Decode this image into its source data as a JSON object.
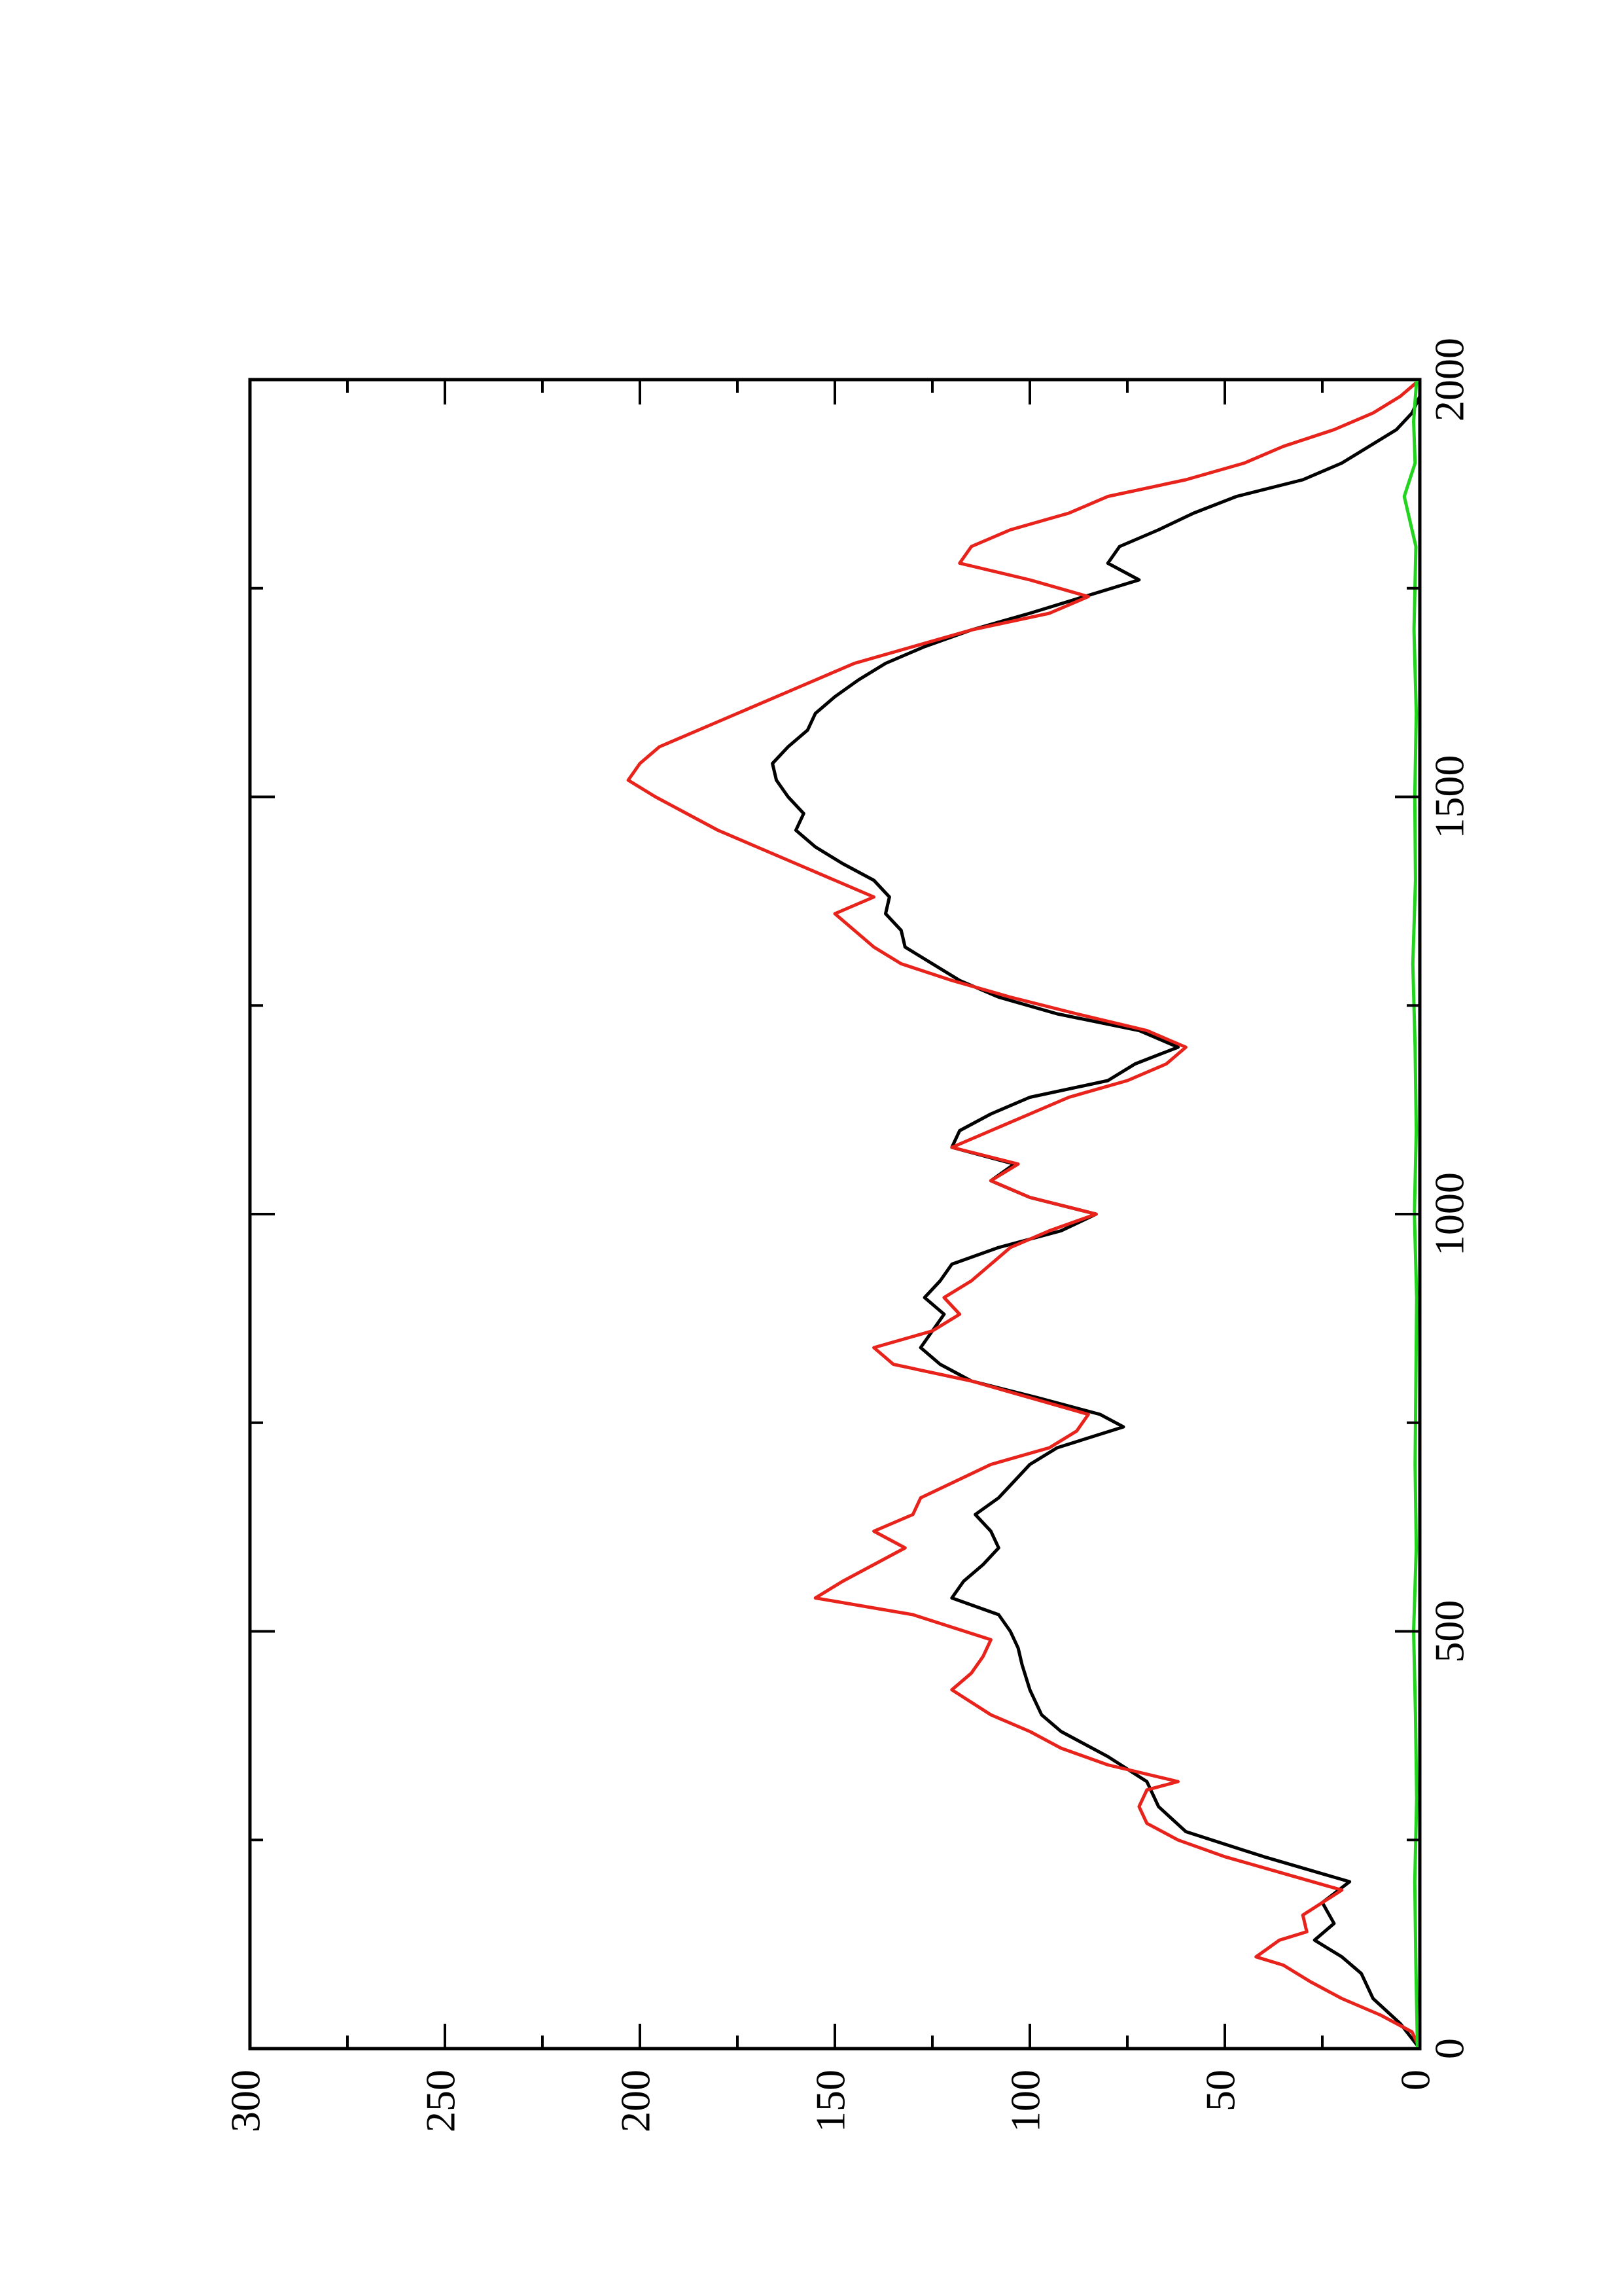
{
  "chart_data": {
    "type": "line",
    "title": "",
    "xlabel": "",
    "ylabel": "",
    "xlim": [
      0,
      2000
    ],
    "ylim": [
      0,
      300
    ],
    "x_ticks": [
      0,
      500,
      1000,
      1500,
      2000
    ],
    "y_ticks": [
      0,
      50,
      100,
      150,
      200,
      250,
      300
    ],
    "x_tick_labels": [
      "0",
      "500",
      "1000",
      "1500",
      "2000"
    ],
    "y_tick_labels": [
      "0",
      "50",
      "100",
      "150",
      "200",
      "250",
      "300"
    ],
    "grid": false,
    "legend": "none",
    "orientation": "rotated 90 degrees counter-clockwise",
    "series": [
      {
        "color": "#000000",
        "points": [
          [
            0,
            0
          ],
          [
            30,
            5
          ],
          [
            60,
            12
          ],
          [
            90,
            15
          ],
          [
            110,
            20
          ],
          [
            130,
            27
          ],
          [
            150,
            22
          ],
          [
            175,
            25
          ],
          [
            200,
            18
          ],
          [
            230,
            40
          ],
          [
            260,
            60
          ],
          [
            290,
            67
          ],
          [
            320,
            70
          ],
          [
            350,
            80
          ],
          [
            380,
            92
          ],
          [
            400,
            97
          ],
          [
            430,
            100
          ],
          [
            460,
            102
          ],
          [
            480,
            103
          ],
          [
            500,
            105
          ],
          [
            520,
            108
          ],
          [
            540,
            120
          ],
          [
            560,
            117
          ],
          [
            580,
            112
          ],
          [
            600,
            108
          ],
          [
            620,
            110
          ],
          [
            640,
            114
          ],
          [
            660,
            108
          ],
          [
            680,
            104
          ],
          [
            700,
            100
          ],
          [
            720,
            93
          ],
          [
            745,
            76
          ],
          [
            760,
            82
          ],
          [
            780,
            98
          ],
          [
            800,
            115
          ],
          [
            820,
            123
          ],
          [
            840,
            128
          ],
          [
            860,
            125
          ],
          [
            880,
            122
          ],
          [
            900,
            127
          ],
          [
            920,
            123
          ],
          [
            940,
            120
          ],
          [
            960,
            108
          ],
          [
            980,
            92
          ],
          [
            1000,
            83
          ],
          [
            1020,
            100
          ],
          [
            1040,
            110
          ],
          [
            1060,
            104
          ],
          [
            1080,
            120
          ],
          [
            1100,
            118
          ],
          [
            1120,
            110
          ],
          [
            1140,
            100
          ],
          [
            1160,
            80
          ],
          [
            1180,
            73
          ],
          [
            1200,
            62
          ],
          [
            1220,
            72
          ],
          [
            1240,
            93
          ],
          [
            1260,
            108
          ],
          [
            1280,
            118
          ],
          [
            1300,
            125
          ],
          [
            1320,
            132
          ],
          [
            1340,
            133
          ],
          [
            1360,
            137
          ],
          [
            1380,
            136
          ],
          [
            1400,
            140
          ],
          [
            1420,
            148
          ],
          [
            1440,
            155
          ],
          [
            1460,
            160
          ],
          [
            1480,
            158
          ],
          [
            1500,
            162
          ],
          [
            1520,
            165
          ],
          [
            1540,
            166
          ],
          [
            1560,
            162
          ],
          [
            1580,
            157
          ],
          [
            1600,
            155
          ],
          [
            1620,
            150
          ],
          [
            1640,
            144
          ],
          [
            1660,
            137
          ],
          [
            1680,
            127
          ],
          [
            1700,
            115
          ],
          [
            1720,
            100
          ],
          [
            1740,
            86
          ],
          [
            1760,
            72
          ],
          [
            1780,
            80
          ],
          [
            1800,
            77
          ],
          [
            1820,
            67
          ],
          [
            1840,
            58
          ],
          [
            1860,
            47
          ],
          [
            1880,
            30
          ],
          [
            1900,
            20
          ],
          [
            1920,
            13
          ],
          [
            1940,
            6
          ],
          [
            1960,
            2
          ],
          [
            1980,
            0
          ],
          [
            2000,
            0
          ]
        ]
      },
      {
        "color": "#e8231b",
        "points": [
          [
            0,
            0
          ],
          [
            20,
            2
          ],
          [
            40,
            10
          ],
          [
            60,
            20
          ],
          [
            80,
            28
          ],
          [
            100,
            35
          ],
          [
            110,
            42
          ],
          [
            130,
            36
          ],
          [
            140,
            29
          ],
          [
            160,
            30
          ],
          [
            175,
            25
          ],
          [
            190,
            20
          ],
          [
            210,
            35
          ],
          [
            230,
            50
          ],
          [
            250,
            62
          ],
          [
            270,
            70
          ],
          [
            290,
            72
          ],
          [
            310,
            70
          ],
          [
            320,
            62
          ],
          [
            340,
            80
          ],
          [
            360,
            92
          ],
          [
            380,
            100
          ],
          [
            400,
            110
          ],
          [
            430,
            120
          ],
          [
            450,
            115
          ],
          [
            470,
            112
          ],
          [
            490,
            110
          ],
          [
            520,
            130
          ],
          [
            540,
            155
          ],
          [
            560,
            148
          ],
          [
            580,
            140
          ],
          [
            600,
            132
          ],
          [
            620,
            140
          ],
          [
            640,
            130
          ],
          [
            660,
            128
          ],
          [
            700,
            110
          ],
          [
            720,
            95
          ],
          [
            740,
            88
          ],
          [
            760,
            85
          ],
          [
            780,
            100
          ],
          [
            800,
            115
          ],
          [
            820,
            135
          ],
          [
            840,
            140
          ],
          [
            860,
            125
          ],
          [
            880,
            118
          ],
          [
            900,
            122
          ],
          [
            920,
            115
          ],
          [
            940,
            110
          ],
          [
            960,
            105
          ],
          [
            980,
            95
          ],
          [
            1000,
            83
          ],
          [
            1020,
            100
          ],
          [
            1040,
            110
          ],
          [
            1060,
            103
          ],
          [
            1080,
            120
          ],
          [
            1100,
            110
          ],
          [
            1120,
            100
          ],
          [
            1140,
            90
          ],
          [
            1160,
            75
          ],
          [
            1180,
            65
          ],
          [
            1200,
            60
          ],
          [
            1220,
            70
          ],
          [
            1240,
            88
          ],
          [
            1260,
            105
          ],
          [
            1280,
            120
          ],
          [
            1300,
            133
          ],
          [
            1320,
            140
          ],
          [
            1340,
            145
          ],
          [
            1360,
            150
          ],
          [
            1380,
            140
          ],
          [
            1400,
            150
          ],
          [
            1420,
            160
          ],
          [
            1440,
            170
          ],
          [
            1460,
            180
          ],
          [
            1480,
            188
          ],
          [
            1500,
            196
          ],
          [
            1520,
            203
          ],
          [
            1540,
            200
          ],
          [
            1560,
            195
          ],
          [
            1580,
            185
          ],
          [
            1600,
            175
          ],
          [
            1620,
            165
          ],
          [
            1640,
            155
          ],
          [
            1660,
            145
          ],
          [
            1680,
            130
          ],
          [
            1700,
            115
          ],
          [
            1720,
            95
          ],
          [
            1740,
            85
          ],
          [
            1760,
            100
          ],
          [
            1780,
            118
          ],
          [
            1800,
            115
          ],
          [
            1820,
            105
          ],
          [
            1840,
            90
          ],
          [
            1860,
            80
          ],
          [
            1880,
            60
          ],
          [
            1900,
            45
          ],
          [
            1920,
            35
          ],
          [
            1940,
            22
          ],
          [
            1960,
            12
          ],
          [
            1980,
            5
          ],
          [
            2000,
            0
          ]
        ]
      },
      {
        "color": "#22d41e",
        "points": [
          [
            0,
            0.6
          ],
          [
            100,
            1.0
          ],
          [
            200,
            1.3
          ],
          [
            300,
            0.8
          ],
          [
            400,
            1.1
          ],
          [
            500,
            1.6
          ],
          [
            600,
            0.9
          ],
          [
            700,
            1.2
          ],
          [
            800,
            1.0
          ],
          [
            900,
            0.8
          ],
          [
            1000,
            1.4
          ],
          [
            1100,
            0.9
          ],
          [
            1200,
            1.2
          ],
          [
            1300,
            1.8
          ],
          [
            1400,
            1.1
          ],
          [
            1500,
            1.3
          ],
          [
            1600,
            0.9
          ],
          [
            1700,
            1.5
          ],
          [
            1800,
            1.0
          ],
          [
            1860,
            4.0
          ],
          [
            1900,
            1.2
          ],
          [
            1950,
            1.6
          ],
          [
            2000,
            0.8
          ]
        ]
      }
    ]
  }
}
